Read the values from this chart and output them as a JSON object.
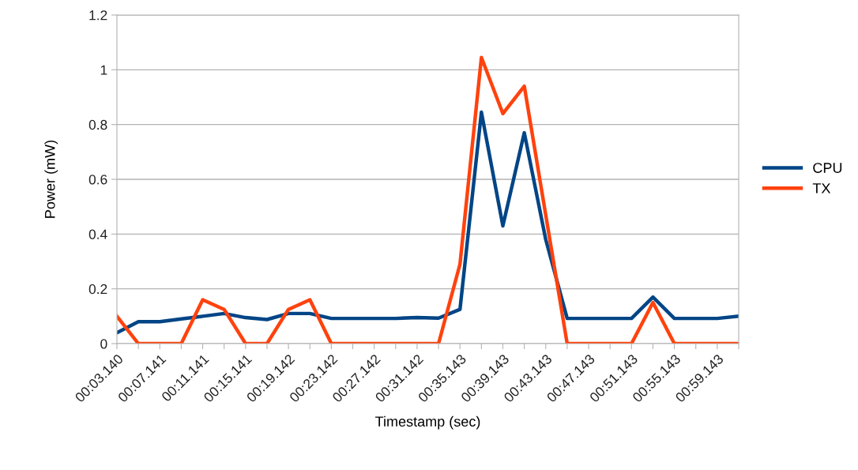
{
  "chart_data": {
    "type": "line",
    "xlabel": "Timestamp (sec)",
    "ylabel": "Power (mW)",
    "categories": [
      "00:03.140",
      null,
      "00:07.141",
      null,
      "00:11.141",
      null,
      "00:15.141",
      null,
      "00:19.142",
      null,
      "00:23.142",
      null,
      "00:27.142",
      null,
      "00:31.142",
      null,
      "00:35.143",
      null,
      "00:39.143",
      null,
      "00:43.143",
      null,
      "00:47.143",
      null,
      "00:51.143",
      null,
      "00:55.143",
      null,
      "00:59.143",
      null
    ],
    "series": [
      {
        "name": "CPU",
        "color": "#004586",
        "values": [
          0.04,
          0.08,
          0.08,
          0.09,
          0.1,
          0.11,
          0.095,
          0.088,
          0.11,
          0.11,
          0.092,
          0.092,
          0.092,
          0.092,
          0.095,
          0.093,
          0.125,
          0.845,
          0.43,
          0.77,
          0.38,
          0.092,
          0.092,
          0.092,
          0.092,
          0.17,
          0.092,
          0.092,
          0.092,
          0.1
        ]
      },
      {
        "name": "TX",
        "color": "#ff420e",
        "values": [
          0.1,
          0,
          0,
          0,
          0.16,
          0.125,
          0,
          0,
          0.125,
          0.16,
          0,
          0,
          0,
          0,
          0,
          0,
          0.29,
          1.045,
          0.84,
          0.94,
          0.47,
          0,
          0,
          0,
          0,
          0.15,
          0,
          0,
          0,
          0
        ]
      }
    ],
    "ylim": [
      0,
      1.2
    ],
    "yticks": [
      0,
      {
        "value": 0.2,
        "label": "0.2"
      },
      {
        "value": 0.4,
        "label": "0.4"
      },
      {
        "value": 0.6,
        "label": "0.6"
      },
      {
        "value": 0.8,
        "label": "0.8"
      },
      1,
      {
        "value": 1.2,
        "label": "1.2"
      }
    ],
    "grid": "y",
    "legend": "right",
    "marker": "none",
    "line_style": "solid"
  }
}
